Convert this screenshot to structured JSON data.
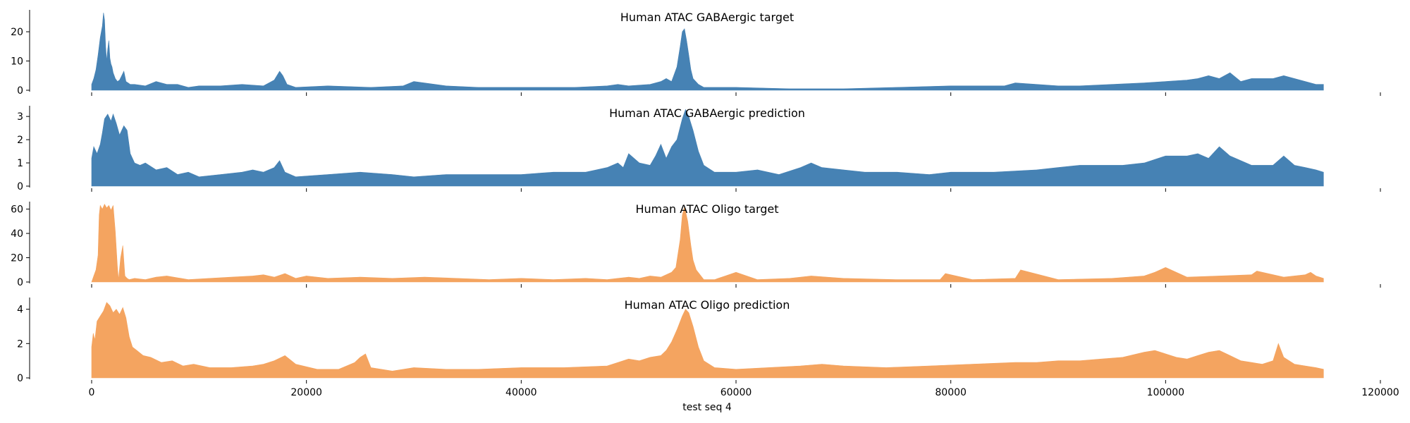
{
  "figure": {
    "xlabel": "test seq 4"
  },
  "chart_data": [
    {
      "type": "area",
      "title": "Human ATAC GABAergic target",
      "color": "#4682b4",
      "xlim": [
        0,
        120000
      ],
      "ylim": [
        0,
        27
      ],
      "yticks": [
        0,
        10,
        20
      ],
      "xticks": [
        0,
        20000,
        40000,
        60000,
        80000,
        100000,
        120000
      ],
      "x": [
        0,
        200,
        400,
        600,
        800,
        1000,
        1100,
        1200,
        1300,
        1400,
        1500,
        1600,
        1700,
        1800,
        1900,
        2000,
        2200,
        2400,
        2600,
        2800,
        3000,
        3200,
        3400,
        3600,
        4000,
        5000,
        6000,
        7000,
        8000,
        9000,
        10000,
        12000,
        14000,
        16000,
        17000,
        17500,
        17800,
        18200,
        19000,
        22000,
        26000,
        29000,
        30000,
        33000,
        36000,
        40000,
        45000,
        48000,
        49000,
        50000,
        52000,
        53000,
        53500,
        54000,
        54500,
        54800,
        55000,
        55200,
        55400,
        55600,
        55800,
        56000,
        56500,
        57000,
        58000,
        60000,
        65000,
        70000,
        75000,
        80000,
        85000,
        86000,
        90000,
        92000,
        95000,
        98000,
        100000,
        102000,
        103000,
        104000,
        105000,
        106000,
        107000,
        108000,
        110000,
        111000,
        112000,
        113000,
        114000,
        114700
      ],
      "values": [
        2,
        4,
        7,
        12,
        18,
        22,
        26.5,
        24,
        15,
        10,
        14,
        17,
        11,
        9,
        8,
        6,
        4,
        3,
        3.5,
        5,
        6.5,
        3,
        2.5,
        2,
        2,
        1.5,
        3,
        2,
        2,
        1,
        1.5,
        1.5,
        2,
        1.5,
        3.5,
        6.5,
        5,
        2,
        1,
        1.5,
        1,
        1.5,
        3,
        1.5,
        1,
        1,
        1,
        1.5,
        2,
        1.5,
        2,
        3,
        4,
        3,
        8,
        15,
        20,
        21,
        17,
        12,
        7,
        4,
        2,
        1,
        1,
        1,
        0.5,
        0.5,
        1,
        1.5,
        1.5,
        2.5,
        1.5,
        1.5,
        2,
        2.5,
        3,
        3.5,
        4,
        5,
        4,
        6,
        3,
        4,
        4,
        5,
        4,
        3,
        2,
        2
      ]
    },
    {
      "type": "area",
      "title": "Human ATAC GABAergic prediction",
      "color": "#4682b4",
      "xlim": [
        0,
        120000
      ],
      "ylim": [
        0,
        3.4
      ],
      "yticks": [
        0,
        1,
        2,
        3
      ],
      "xticks": [
        0,
        20000,
        40000,
        60000,
        80000,
        100000,
        120000
      ],
      "x": [
        0,
        200,
        500,
        800,
        1000,
        1200,
        1500,
        1800,
        2000,
        2300,
        2600,
        3000,
        3300,
        3600,
        4000,
        4500,
        5000,
        6000,
        7000,
        8000,
        9000,
        10000,
        12000,
        14000,
        15000,
        16000,
        17000,
        17500,
        18000,
        19000,
        22000,
        25000,
        28000,
        30000,
        33000,
        36000,
        40000,
        43000,
        46000,
        47000,
        48000,
        49000,
        49500,
        50000,
        51000,
        52000,
        52500,
        53000,
        53500,
        54000,
        54500,
        55000,
        55300,
        55600,
        56000,
        56500,
        57000,
        58000,
        60000,
        62000,
        64000,
        66000,
        67000,
        68000,
        70000,
        72000,
        75000,
        78000,
        80000,
        84000,
        88000,
        90000,
        92000,
        94000,
        96000,
        98000,
        100000,
        102000,
        103000,
        104000,
        105000,
        106000,
        108000,
        110000,
        111000,
        112000,
        113000,
        114000,
        114700
      ],
      "values": [
        1.2,
        1.7,
        1.4,
        1.8,
        2.3,
        2.9,
        3.1,
        2.8,
        3.1,
        2.7,
        2.2,
        2.6,
        2.4,
        1.4,
        1.0,
        0.9,
        1.0,
        0.7,
        0.8,
        0.5,
        0.6,
        0.4,
        0.5,
        0.6,
        0.7,
        0.6,
        0.8,
        1.1,
        0.6,
        0.4,
        0.5,
        0.6,
        0.5,
        0.4,
        0.5,
        0.5,
        0.5,
        0.6,
        0.6,
        0.7,
        0.8,
        1.0,
        0.8,
        1.4,
        1.0,
        0.9,
        1.3,
        1.8,
        1.2,
        1.7,
        2.0,
        2.9,
        3.3,
        3.0,
        2.4,
        1.5,
        0.9,
        0.6,
        0.6,
        0.7,
        0.5,
        0.8,
        1.0,
        0.8,
        0.7,
        0.6,
        0.6,
        0.5,
        0.6,
        0.6,
        0.7,
        0.8,
        0.9,
        0.9,
        0.9,
        1.0,
        1.3,
        1.3,
        1.4,
        1.2,
        1.7,
        1.3,
        0.9,
        0.9,
        1.3,
        0.9,
        0.8,
        0.7,
        0.6
      ]
    },
    {
      "type": "area",
      "title": "Human ATAC Oligo target",
      "color": "#f4a460",
      "xlim": [
        0,
        120000
      ],
      "ylim": [
        0,
        65
      ],
      "yticks": [
        0,
        20,
        40,
        60
      ],
      "xticks": [
        0,
        20000,
        40000,
        60000,
        80000,
        100000,
        120000
      ],
      "x": [
        0,
        200,
        400,
        600,
        700,
        800,
        1000,
        1200,
        1400,
        1600,
        1800,
        2000,
        2200,
        2400,
        2500,
        2700,
        2900,
        3100,
        3300,
        3500,
        4000,
        5000,
        6000,
        7000,
        9000,
        11000,
        13000,
        15000,
        16000,
        17000,
        18000,
        19000,
        20000,
        22000,
        25000,
        28000,
        31000,
        34000,
        37000,
        40000,
        43000,
        46000,
        48000,
        49000,
        50000,
        51000,
        52000,
        53000,
        54000,
        54400,
        54800,
        55000,
        55200,
        55500,
        55800,
        56000,
        56300,
        57000,
        58000,
        59000,
        60000,
        62000,
        65000,
        67000,
        70000,
        75000,
        79000,
        79500,
        82000,
        86000,
        86500,
        90000,
        95000,
        98000,
        99000,
        100000,
        102000,
        105000,
        108000,
        108500,
        111000,
        113000,
        113500,
        114000,
        114700
      ],
      "values": [
        0,
        5,
        10,
        22,
        55,
        63,
        60,
        64,
        61,
        63,
        59,
        63,
        42,
        12,
        2,
        20,
        30,
        5,
        3,
        2,
        3,
        2,
        4,
        5,
        2,
        3,
        4,
        5,
        6,
        4,
        7,
        3,
        5,
        3,
        4,
        3,
        4,
        3,
        2,
        3,
        2,
        3,
        2,
        3,
        4,
        3,
        5,
        4,
        8,
        12,
        35,
        55,
        62,
        50,
        30,
        18,
        10,
        2,
        2,
        5,
        8,
        2,
        3,
        5,
        3,
        2,
        2,
        7,
        2,
        3,
        10,
        2,
        3,
        5,
        8,
        12,
        4,
        5,
        6,
        9,
        4,
        6,
        8,
        5,
        3
      ]
    },
    {
      "type": "area",
      "title": "Human ATAC Oligo prediction",
      "color": "#f4a460",
      "xlim": [
        0,
        120000
      ],
      "ylim": [
        0,
        4.6
      ],
      "yticks": [
        0,
        2,
        4
      ],
      "xticks": [
        0,
        20000,
        40000,
        60000,
        80000,
        100000,
        120000
      ],
      "x": [
        0,
        150,
        300,
        500,
        800,
        1100,
        1400,
        1700,
        2000,
        2300,
        2600,
        2900,
        3200,
        3500,
        3800,
        4200,
        4800,
        5500,
        6500,
        7500,
        8500,
        9500,
        11000,
        13000,
        15000,
        16000,
        17000,
        18000,
        19000,
        21000,
        23000,
        24500,
        25000,
        25500,
        26000,
        28000,
        30000,
        33000,
        36000,
        40000,
        44000,
        48000,
        49000,
        50000,
        51000,
        52000,
        53000,
        53500,
        54000,
        54500,
        55000,
        55300,
        55600,
        56000,
        56500,
        57000,
        58000,
        60000,
        63000,
        66000,
        68000,
        70000,
        74000,
        78000,
        82000,
        86000,
        88000,
        90000,
        92000,
        94000,
        96000,
        98000,
        99000,
        100000,
        101000,
        102000,
        103000,
        104000,
        105000,
        106000,
        107000,
        108000,
        109000,
        110000,
        110500,
        111000,
        112000,
        113000,
        114000,
        114700
      ],
      "values": [
        1.8,
        2.6,
        2.2,
        3.3,
        3.6,
        3.9,
        4.4,
        4.2,
        3.8,
        4.0,
        3.7,
        4.1,
        3.5,
        2.4,
        1.8,
        1.6,
        1.3,
        1.2,
        0.9,
        1.0,
        0.7,
        0.8,
        0.6,
        0.6,
        0.7,
        0.8,
        1.0,
        1.3,
        0.8,
        0.5,
        0.5,
        0.9,
        1.2,
        1.4,
        0.6,
        0.4,
        0.6,
        0.5,
        0.5,
        0.6,
        0.6,
        0.7,
        0.9,
        1.1,
        1.0,
        1.2,
        1.3,
        1.6,
        2.1,
        2.8,
        3.6,
        4.0,
        3.8,
        3.0,
        1.8,
        1.0,
        0.6,
        0.5,
        0.6,
        0.7,
        0.8,
        0.7,
        0.6,
        0.7,
        0.8,
        0.9,
        0.9,
        1.0,
        1.0,
        1.1,
        1.2,
        1.5,
        1.6,
        1.4,
        1.2,
        1.1,
        1.3,
        1.5,
        1.6,
        1.3,
        1.0,
        0.9,
        0.8,
        1.0,
        2.0,
        1.2,
        0.8,
        0.7,
        0.6,
        0.5
      ]
    }
  ]
}
